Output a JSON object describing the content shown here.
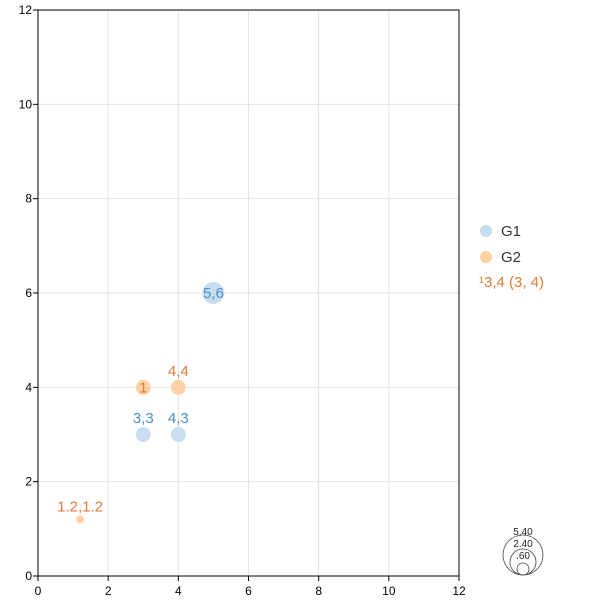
{
  "chart_data": {
    "type": "scatter",
    "title": "",
    "xlabel": "",
    "ylabel": "",
    "xlim": [
      0,
      12
    ],
    "ylim": [
      0,
      12
    ],
    "xticks": [
      0,
      2,
      4,
      6,
      8,
      10,
      12
    ],
    "yticks": [
      0,
      2,
      4,
      6,
      8,
      10,
      12
    ],
    "grid": true,
    "legend_position": "right",
    "series": [
      {
        "name": "G1",
        "color": "#4a90d9",
        "fill": "#c6dbef",
        "label_color": "#4a90c8",
        "points": [
          {
            "x": 3,
            "y": 3,
            "size": 2.4,
            "label": "3,3"
          },
          {
            "x": 4,
            "y": 3,
            "size": 2.4,
            "label": "4,3"
          },
          {
            "x": 5,
            "y": 6,
            "size": 5.4,
            "label": "5,6"
          }
        ]
      },
      {
        "name": "G2",
        "color": "#e07b39",
        "fill": "#fdd0a2",
        "label_color": "#e07b39",
        "points": [
          {
            "x": 3,
            "y": 4,
            "size": 2.4,
            "label": "1"
          },
          {
            "x": 4,
            "y": 4,
            "size": 2.4,
            "label": "4,4"
          },
          {
            "x": 1.2,
            "y": 1.2,
            "size": 0.6,
            "label": "1.2,1.2"
          }
        ]
      }
    ],
    "annotations": [
      "¹3,4 (3, 4)"
    ],
    "size_legend": [
      5.4,
      2.4,
      0.6
    ],
    "size_legend_labels": [
      "5.40",
      "2.40",
      ".60"
    ]
  }
}
